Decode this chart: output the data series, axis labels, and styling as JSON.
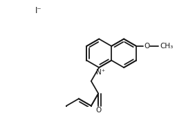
{
  "bg_color": "#ffffff",
  "line_color": "#1a1a1a",
  "line_width": 1.3,
  "font_size": 7.5,
  "iodide_label": "I⁻",
  "N_plus_label": "N⁺",
  "OCH3_label": "O",
  "CH3_label": "CH₃",
  "O_carbonyl_label": "O"
}
